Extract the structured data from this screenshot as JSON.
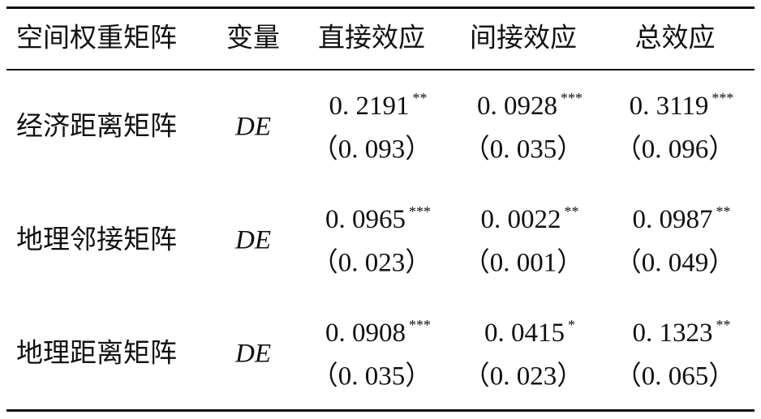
{
  "table": {
    "header": [
      "空间权重矩阵",
      "变量",
      "直接效应",
      "间接效应",
      "总效应"
    ],
    "rows": [
      {
        "matrix": "经济距离矩阵",
        "variable": "DE",
        "cells": [
          {
            "value": "0. 2191",
            "stars": "**",
            "se": "（0. 093）"
          },
          {
            "value": "0. 0928",
            "stars": "***",
            "se": "（0. 035）"
          },
          {
            "value": "0. 3119",
            "stars": "***",
            "se": "（0. 096）"
          }
        ]
      },
      {
        "matrix": "地理邻接矩阵",
        "variable": "DE",
        "cells": [
          {
            "value": "0. 0965",
            "stars": "***",
            "se": "（0. 023）"
          },
          {
            "value": "0. 0022",
            "stars": "**",
            "se": "（0. 001）"
          },
          {
            "value": "0. 0987",
            "stars": "**",
            "se": "（0. 049）"
          }
        ]
      },
      {
        "matrix": "地理距离矩阵",
        "variable": "DE",
        "cells": [
          {
            "value": "0. 0908",
            "stars": "***",
            "se": "（0. 035）"
          },
          {
            "value": "0. 0415",
            "stars": "*",
            "se": "（0. 023）"
          },
          {
            "value": "0. 1323",
            "stars": "**",
            "se": "（0. 065）"
          }
        ]
      }
    ]
  }
}
